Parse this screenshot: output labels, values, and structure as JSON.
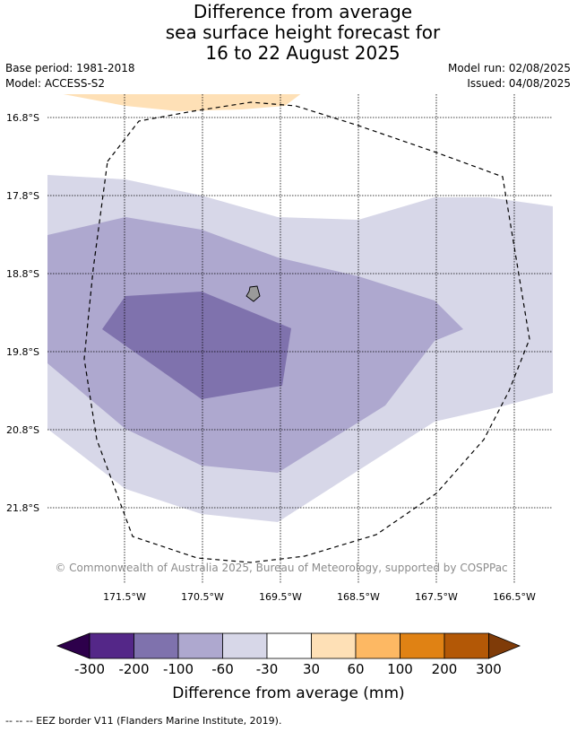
{
  "title": {
    "line1": "Difference from average",
    "line2": "sea surface height forecast for",
    "line3": "16 to 22 August 2025"
  },
  "meta": {
    "base_period": "Base period: 1981-2018",
    "model": "Model: ACCESS-S2",
    "model_run": "Model run: 02/08/2025",
    "issued": "Issued: 04/08/2025"
  },
  "map": {
    "lat_labels": [
      "16.8°S",
      "17.8°S",
      "18.8°S",
      "19.8°S",
      "20.8°S",
      "21.8°S"
    ],
    "lon_labels": [
      "171.5°W",
      "170.5°W",
      "169.5°W",
      "168.5°W",
      "167.5°W",
      "166.5°W"
    ],
    "copyright": "© Commonwealth of Australia 2025, Bureau of Meteorology, supported by COSPPac",
    "colors": {
      "band_minus_200_to_100": "#7f72ad",
      "band_minus_100_to_60": "#aea8cf",
      "band_minus_60_to_30": "#d7d7e8",
      "band_30_to_60": "#fee0b6",
      "island": "#9a9a9a",
      "grid": "#000000"
    }
  },
  "colorbar": {
    "ticks": [
      "-300",
      "-200",
      "-100",
      "-60",
      "-30",
      "30",
      "60",
      "100",
      "200",
      "300"
    ],
    "colors": [
      "#2d004b",
      "#542788",
      "#7f72ad",
      "#aea8cf",
      "#d7d7e8",
      "#ffffff",
      "#fee0b6",
      "#fdb863",
      "#e08214",
      "#b35806",
      "#7f3b08"
    ],
    "title": "Difference from average (mm)"
  },
  "footnote": "-- -- -- EEZ border V11 (Flanders Marine Institute, 2019)."
}
